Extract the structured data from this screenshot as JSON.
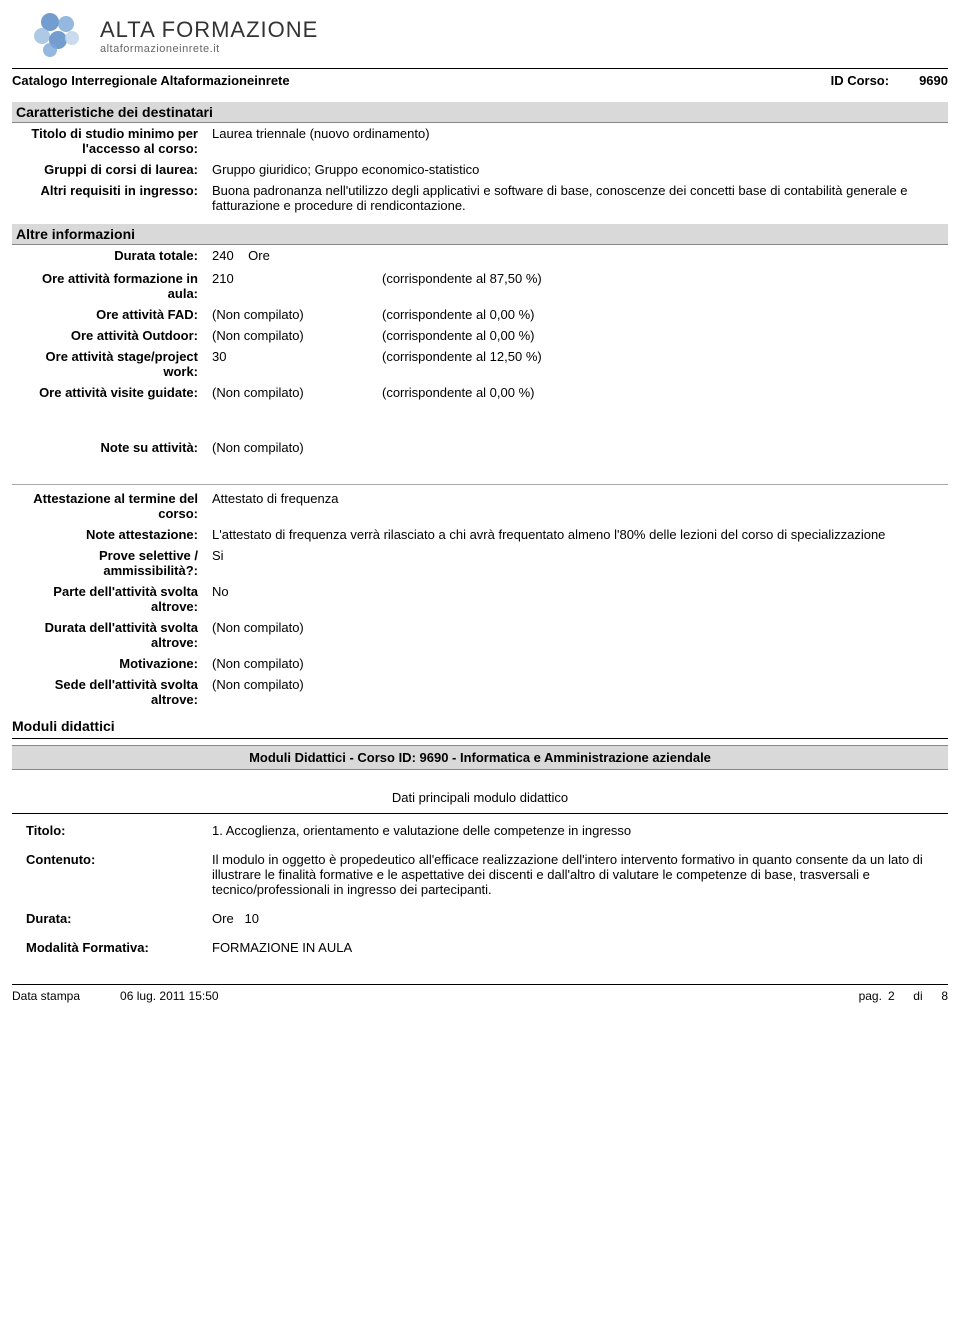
{
  "logo": {
    "title": "ALTA FORMAZIONE",
    "subtitle": "altaformazioneinrete.it",
    "colors": [
      "#5a8cc7",
      "#7aa6d6",
      "#9abce0",
      "#c4d7eb"
    ]
  },
  "catalog_label": "Catalogo Interregionale Altaformazioneinrete",
  "id_corso_label": "ID Corso:",
  "id_corso_value": "9690",
  "section_caratteristiche": "Caratteristiche dei destinatari",
  "titolo_studio": {
    "label": "Titolo di studio minimo per l'accesso al corso:",
    "value": "Laurea triennale (nuovo ordinamento)"
  },
  "gruppi_laurea": {
    "label": "Gruppi di corsi di laurea:",
    "value": "Gruppo giuridico; Gruppo economico-statistico"
  },
  "altri_requisiti": {
    "label": "Altri requisiti in ingresso:",
    "value": "Buona padronanza nell'utilizzo degli applicativi e software di base, conoscenze dei concetti base di contabilità generale e fatturazione e procedure di rendicontazione."
  },
  "section_altre": "Altre informazioni",
  "durata_totale": {
    "label": "Durata totale:",
    "value": "240",
    "unit": "Ore"
  },
  "corrispondente_prefix": "(corrispondente al",
  "corrispondente_suffix": "%)",
  "activities": [
    {
      "label": "Ore attività formazione in aula:",
      "value": "210",
      "pct": "87,50"
    },
    {
      "label": "Ore attività FAD:",
      "value": "(Non compilato)",
      "pct": "0,00"
    },
    {
      "label": "Ore attività Outdoor:",
      "value": "(Non compilato)",
      "pct": "0,00"
    },
    {
      "label": "Ore attività stage/project work:",
      "value": "30",
      "pct": "12,50"
    },
    {
      "label": "Ore attività visite guidate:",
      "value": "(Non compilato)",
      "pct": "0,00"
    }
  ],
  "note_attivita": {
    "label": "Note su attività:",
    "value": "(Non compilato)"
  },
  "attestazione": {
    "label": "Attestazione al termine del corso:",
    "value": "Attestato di frequenza"
  },
  "note_attestazione": {
    "label": "Note attestazione:",
    "value": "L'attestato di frequenza verrà rilasciato a chi avrà frequentato almeno l'80% delle lezioni del corso di specializzazione"
  },
  "prove": {
    "label": "Prove selettive / ammissibilità?:",
    "value": "Si"
  },
  "parte_altrove": {
    "label": "Parte dell'attività svolta altrove:",
    "value": "No"
  },
  "durata_altrove": {
    "label": "Durata dell'attività svolta altrove:",
    "value": "(Non compilato)"
  },
  "motivazione": {
    "label": "Motivazione:",
    "value": "(Non compilato)"
  },
  "sede_altrove": {
    "label": "Sede  dell'attività svolta altrove:",
    "value": "(Non compilato)"
  },
  "section_moduli": "Moduli didattici",
  "moduli_bar": "Moduli Didattici - Corso ID: 9690 - Informatica e Amministrazione aziendale",
  "dati_principali": "Dati principali modulo didattico",
  "modulo": {
    "titolo_label": "Titolo:",
    "titolo_value": "1. Accoglienza, orientamento e valutazione delle competenze in ingresso",
    "contenuto_label": "Contenuto:",
    "contenuto_value": "Il modulo in oggetto è propedeutico all'efficace realizzazione dell'intero intervento formativo in quanto consente da un lato di illustrare le finalità formative e le aspettative dei discenti e dall'altro di valutare le competenze di base, trasversali e tecnico/professionali in ingresso dei partecipanti.",
    "durata_label": "Durata:",
    "durata_unit": "Ore",
    "durata_value": "10",
    "modalita_label": "Modalità Formativa:",
    "modalita_value": "FORMAZIONE IN AULA"
  },
  "footer": {
    "stampa_label": "Data stampa",
    "stampa_value": "06 lug. 2011 15:50",
    "pag_label": "pag.",
    "pag_num": "2",
    "di_label": "di",
    "pag_total": "8"
  }
}
